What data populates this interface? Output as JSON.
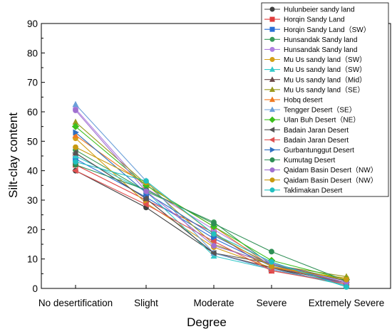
{
  "chart_data": {
    "type": "line",
    "xlabel": "Degree",
    "ylabel": "Silt-clay content",
    "categories": [
      "No desertification",
      "Slight",
      "Moderate",
      "Severe",
      "Extremely Severe"
    ],
    "ylim": [
      0,
      90
    ],
    "yticks": [
      0,
      10,
      20,
      30,
      40,
      50,
      60,
      70,
      80,
      90
    ],
    "legend_position": "top-right",
    "series": [
      {
        "name": "Hulunbeier sandy land",
        "color": "#404040",
        "marker": "circle",
        "values": [
          40.0,
          27.5,
          12.0,
          7.0,
          1.0
        ]
      },
      {
        "name": "Horqin Sandy Land",
        "color": "#e03c3c",
        "marker": "square",
        "values": [
          42.0,
          30.0,
          19.0,
          6.0,
          2.0
        ]
      },
      {
        "name": "Horqin Sandy Land（SW）",
        "color": "#2a6fd6",
        "marker": "square",
        "values": [
          44.0,
          31.0,
          17.0,
          7.5,
          1.5
        ]
      },
      {
        "name": "Hunsandak Sandy land",
        "color": "#3a9b5a",
        "marker": "circle",
        "values": [
          47.0,
          33.0,
          22.5,
          8.0,
          3.0
        ]
      },
      {
        "name": "Hunsandak Sandy land",
        "color": "#b07fe0",
        "marker": "circle",
        "values": [
          61.0,
          34.0,
          20.0,
          8.5,
          2.0
        ]
      },
      {
        "name": "Mu Us sandy land（SW）",
        "color": "#d4a017",
        "marker": "circle",
        "values": [
          51.0,
          29.0,
          14.0,
          7.0,
          3.5
        ]
      },
      {
        "name": "Mu Us sandy land（SW）",
        "color": "#33c8c8",
        "marker": "triangle-up",
        "values": [
          45.0,
          33.0,
          11.0,
          6.5,
          1.0
        ]
      },
      {
        "name": "Mu Us sandy land（Mid）",
        "color": "#6b4a4a",
        "marker": "triangle-up",
        "values": [
          46.0,
          30.5,
          12.0,
          7.0,
          2.0
        ]
      },
      {
        "name": "Mu Us sandy land（SE）",
        "color": "#9a9a1e",
        "marker": "triangle-up",
        "values": [
          56.5,
          35.5,
          15.0,
          8.0,
          4.0
        ]
      },
      {
        "name": "Hobq desert",
        "color": "#f07a22",
        "marker": "triangle-up",
        "values": [
          52.0,
          35.0,
          21.0,
          7.5,
          2.0
        ]
      },
      {
        "name": "Tengger Desert（SE）",
        "color": "#6a9fd8",
        "marker": "triangle-up",
        "values": [
          62.5,
          36.5,
          12.0,
          6.5,
          1.5
        ]
      },
      {
        "name": "Ulan Buh Desert（NE）",
        "color": "#3cbf1c",
        "marker": "diamond",
        "values": [
          55.0,
          35.0,
          21.0,
          9.5,
          3.0
        ]
      },
      {
        "name": "Badain Jaran Desert",
        "color": "#555555",
        "marker": "triangle-left",
        "values": [
          46.0,
          30.5,
          12.0,
          8.5,
          2.5
        ]
      },
      {
        "name": "Badain Jaran Desert",
        "color": "#e05050",
        "marker": "triangle-left",
        "values": [
          40.0,
          28.5,
          16.0,
          6.0,
          1.5
        ]
      },
      {
        "name": "Gurbantunggut Desert",
        "color": "#2f6fc0",
        "marker": "triangle-right",
        "values": [
          53.0,
          32.5,
          18.0,
          8.0,
          2.0
        ]
      },
      {
        "name": "Kumutag Desert",
        "color": "#2e8f55",
        "marker": "circle",
        "values": [
          42.0,
          33.5,
          22.0,
          12.5,
          2.5
        ]
      },
      {
        "name": "Qaidam Basin Desert（NW）",
        "color": "#a070d0",
        "marker": "circle",
        "values": [
          60.5,
          33.0,
          14.5,
          8.5,
          2.0
        ]
      },
      {
        "name": "Qaidam Basin Desert（NW）",
        "color": "#c89a10",
        "marker": "circle",
        "values": [
          48.0,
          36.0,
          18.5,
          7.5,
          3.0
        ]
      },
      {
        "name": "Taklimakan Desert",
        "color": "#22c0c0",
        "marker": "circle",
        "values": [
          43.0,
          36.5,
          18.5,
          9.0,
          0.5
        ]
      }
    ]
  }
}
